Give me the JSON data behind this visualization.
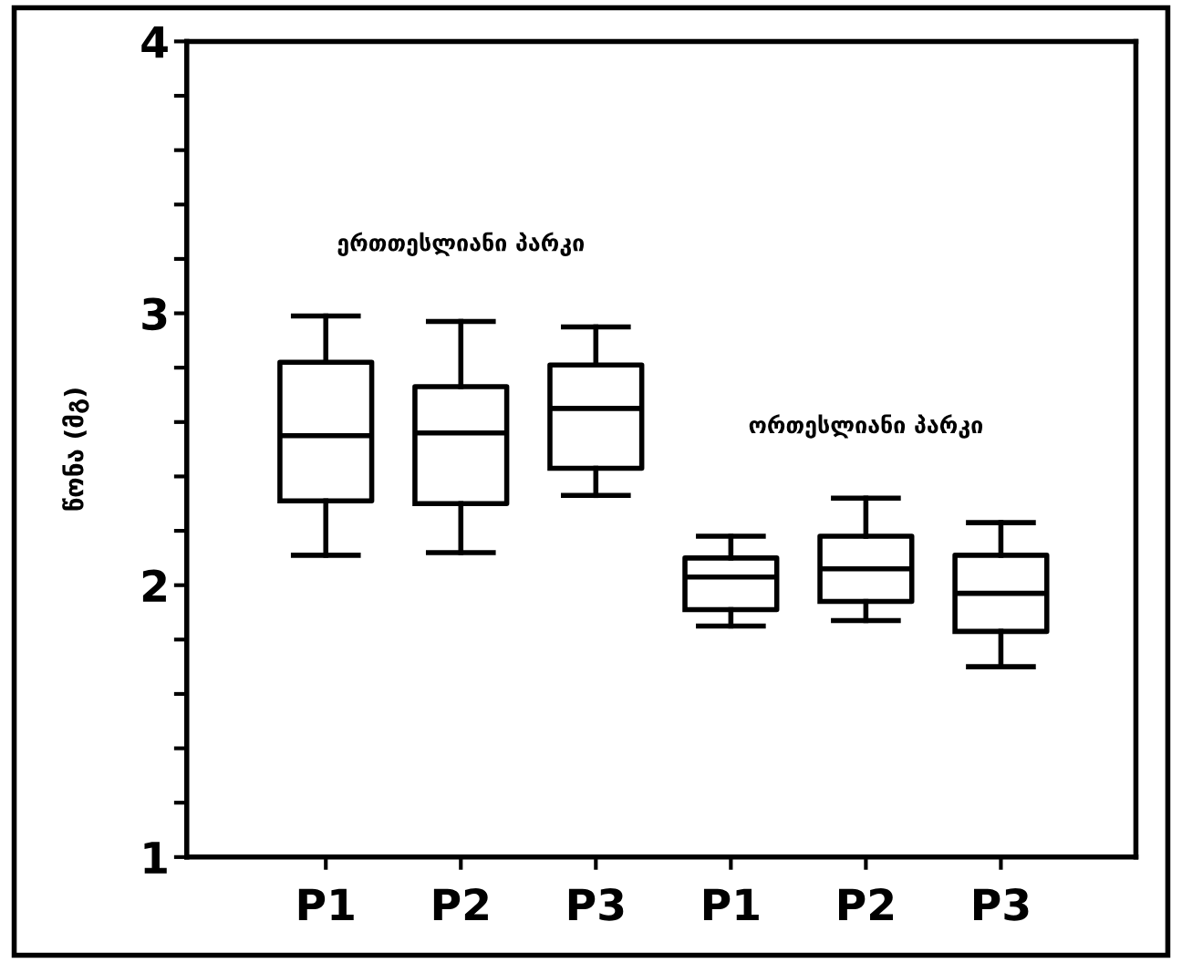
{
  "chart_data": {
    "type": "box",
    "ylabel": "წონა (მგ)",
    "categories": [
      "P1",
      "P2",
      "P3",
      "P1",
      "P2",
      "P3"
    ],
    "boxes": [
      {
        "low": 2.11,
        "q1": 2.31,
        "median": 2.55,
        "q3": 2.82,
        "high": 2.99
      },
      {
        "low": 2.12,
        "q1": 2.3,
        "median": 2.56,
        "q3": 2.73,
        "high": 2.97
      },
      {
        "low": 2.33,
        "q1": 2.43,
        "median": 2.65,
        "q3": 2.81,
        "high": 2.95
      },
      {
        "low": 1.85,
        "q1": 1.91,
        "median": 2.03,
        "q3": 2.1,
        "high": 2.18
      },
      {
        "low": 1.87,
        "q1": 1.94,
        "median": 2.06,
        "q3": 2.18,
        "high": 2.32
      },
      {
        "low": 1.7,
        "q1": 1.83,
        "median": 1.97,
        "q3": 2.11,
        "high": 2.23
      }
    ],
    "color": "#000000",
    "ylim": [
      1,
      4
    ],
    "yticks": [
      1,
      {
        "value": 1.2,
        "label": null
      },
      {
        "value": 1.4,
        "label": null
      },
      {
        "value": 1.6,
        "label": null
      },
      {
        "value": 1.8,
        "label": null
      },
      2,
      {
        "value": 2.2,
        "label": null
      },
      {
        "value": 2.4,
        "label": null
      },
      {
        "value": 2.6,
        "label": null
      },
      {
        "value": 2.8,
        "label": null
      },
      3,
      {
        "value": 3.2,
        "label": null
      },
      {
        "value": 3.4,
        "label": null
      },
      {
        "value": 3.6,
        "label": null
      },
      {
        "value": 3.8,
        "label": null
      },
      4
    ],
    "annotations": [
      "ერთთესლიანი პარკი",
      "ორთესლიანი პარკი"
    ],
    "grid": false,
    "legend": false
  }
}
